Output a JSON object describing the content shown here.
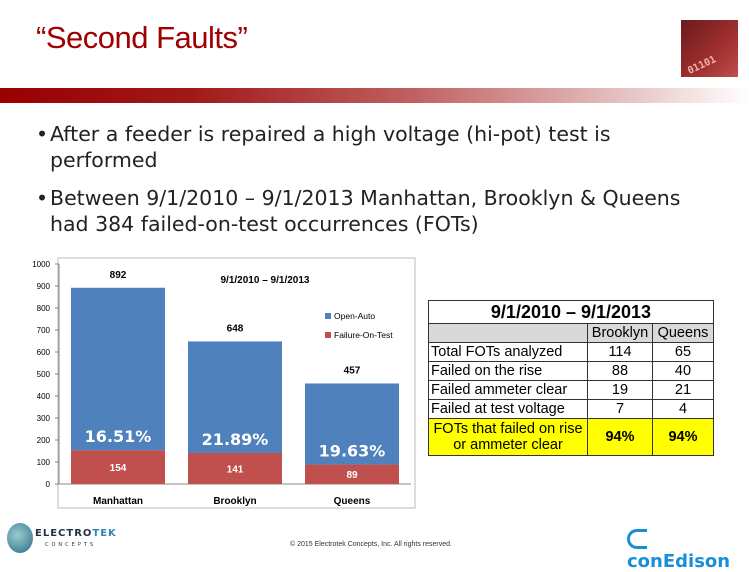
{
  "slide": {
    "title": "“Second Faults”",
    "logo_text": "01101"
  },
  "bullets": [
    "After a feeder is repaired a high voltage (hi-pot) test is performed",
    "Between 9/1/2010 – 9/1/2013 Manhattan, Brooklyn & Queens had 384 failed-on-test occurrences (FOTs)"
  ],
  "chart_data": {
    "type": "bar",
    "stacked": true,
    "title": "9/1/2010 – 9/1/2013",
    "categories": [
      "Manhattan",
      "Brooklyn",
      "Queens"
    ],
    "series": [
      {
        "name": "Failure-On-Test",
        "values": [
          154,
          141,
          89
        ],
        "color": "#c0504d"
      },
      {
        "name": "Open-Auto",
        "values": [
          738,
          507,
          368
        ],
        "color": "#4f81bd"
      }
    ],
    "totals": [
      892,
      648,
      457
    ],
    "percent_labels": [
      "16.51%",
      "21.89%",
      "19.63%"
    ],
    "ylim": [
      0,
      1000
    ],
    "yticks": [
      0,
      100,
      200,
      300,
      400,
      500,
      600,
      700,
      800,
      900,
      1000
    ],
    "legend": "right",
    "grid": false
  },
  "table": {
    "title": "9/1/2010 – 9/1/2013",
    "columns": [
      "",
      "Brooklyn",
      "Queens"
    ],
    "rows": [
      [
        "Total FOTs analyzed",
        "114",
        "65"
      ],
      [
        "Failed on the rise",
        "88",
        "40"
      ],
      [
        "Failed ammeter clear",
        "19",
        "21"
      ],
      [
        "Failed at test voltage",
        "7",
        "4"
      ]
    ],
    "summary": [
      "FOTs that failed on rise or ammeter clear",
      "94%",
      "94%"
    ],
    "summary_color": "#ffff00"
  },
  "footer": {
    "copyright": "© 2015 Electrotek Concepts,  Inc. All rights reserved.",
    "electrotek": {
      "a": "ELECTRO",
      "b": "TEK",
      "c": "CONCEPTS"
    },
    "conedison": "conEdison"
  }
}
